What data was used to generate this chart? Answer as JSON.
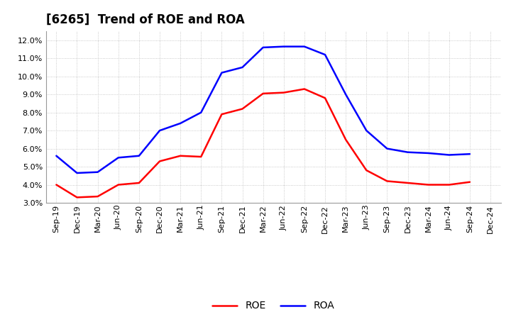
{
  "title": "[6265]  Trend of ROE and ROA",
  "x_labels": [
    "Sep-19",
    "Dec-19",
    "Mar-20",
    "Jun-20",
    "Sep-20",
    "Dec-20",
    "Mar-21",
    "Jun-21",
    "Sep-21",
    "Dec-21",
    "Mar-22",
    "Jun-22",
    "Sep-22",
    "Dec-22",
    "Mar-23",
    "Jun-23",
    "Sep-23",
    "Dec-23",
    "Mar-24",
    "Jun-24",
    "Sep-24",
    "Dec-24"
  ],
  "roe": [
    4.0,
    3.3,
    3.35,
    4.0,
    4.1,
    5.3,
    5.6,
    5.55,
    7.9,
    8.2,
    9.05,
    9.1,
    9.3,
    8.8,
    6.5,
    4.8,
    4.2,
    4.1,
    4.0,
    4.0,
    4.15,
    null
  ],
  "roa": [
    5.6,
    4.65,
    4.7,
    5.5,
    5.6,
    7.0,
    7.4,
    8.0,
    10.2,
    10.5,
    11.6,
    11.65,
    11.65,
    11.2,
    9.0,
    7.0,
    6.0,
    5.8,
    5.75,
    5.65,
    5.7,
    null
  ],
  "roe_color": "#FF0000",
  "roa_color": "#0000FF",
  "ylim": [
    3.0,
    12.5
  ],
  "yticks": [
    3.0,
    4.0,
    5.0,
    6.0,
    7.0,
    8.0,
    9.0,
    10.0,
    11.0,
    12.0
  ],
  "bg_color": "#FFFFFF",
  "plot_bg_color": "#FFFFFF",
  "grid_color": "#BBBBBB",
  "title_fontsize": 12,
  "axis_fontsize": 8,
  "legend_fontsize": 10,
  "line_width": 1.8
}
